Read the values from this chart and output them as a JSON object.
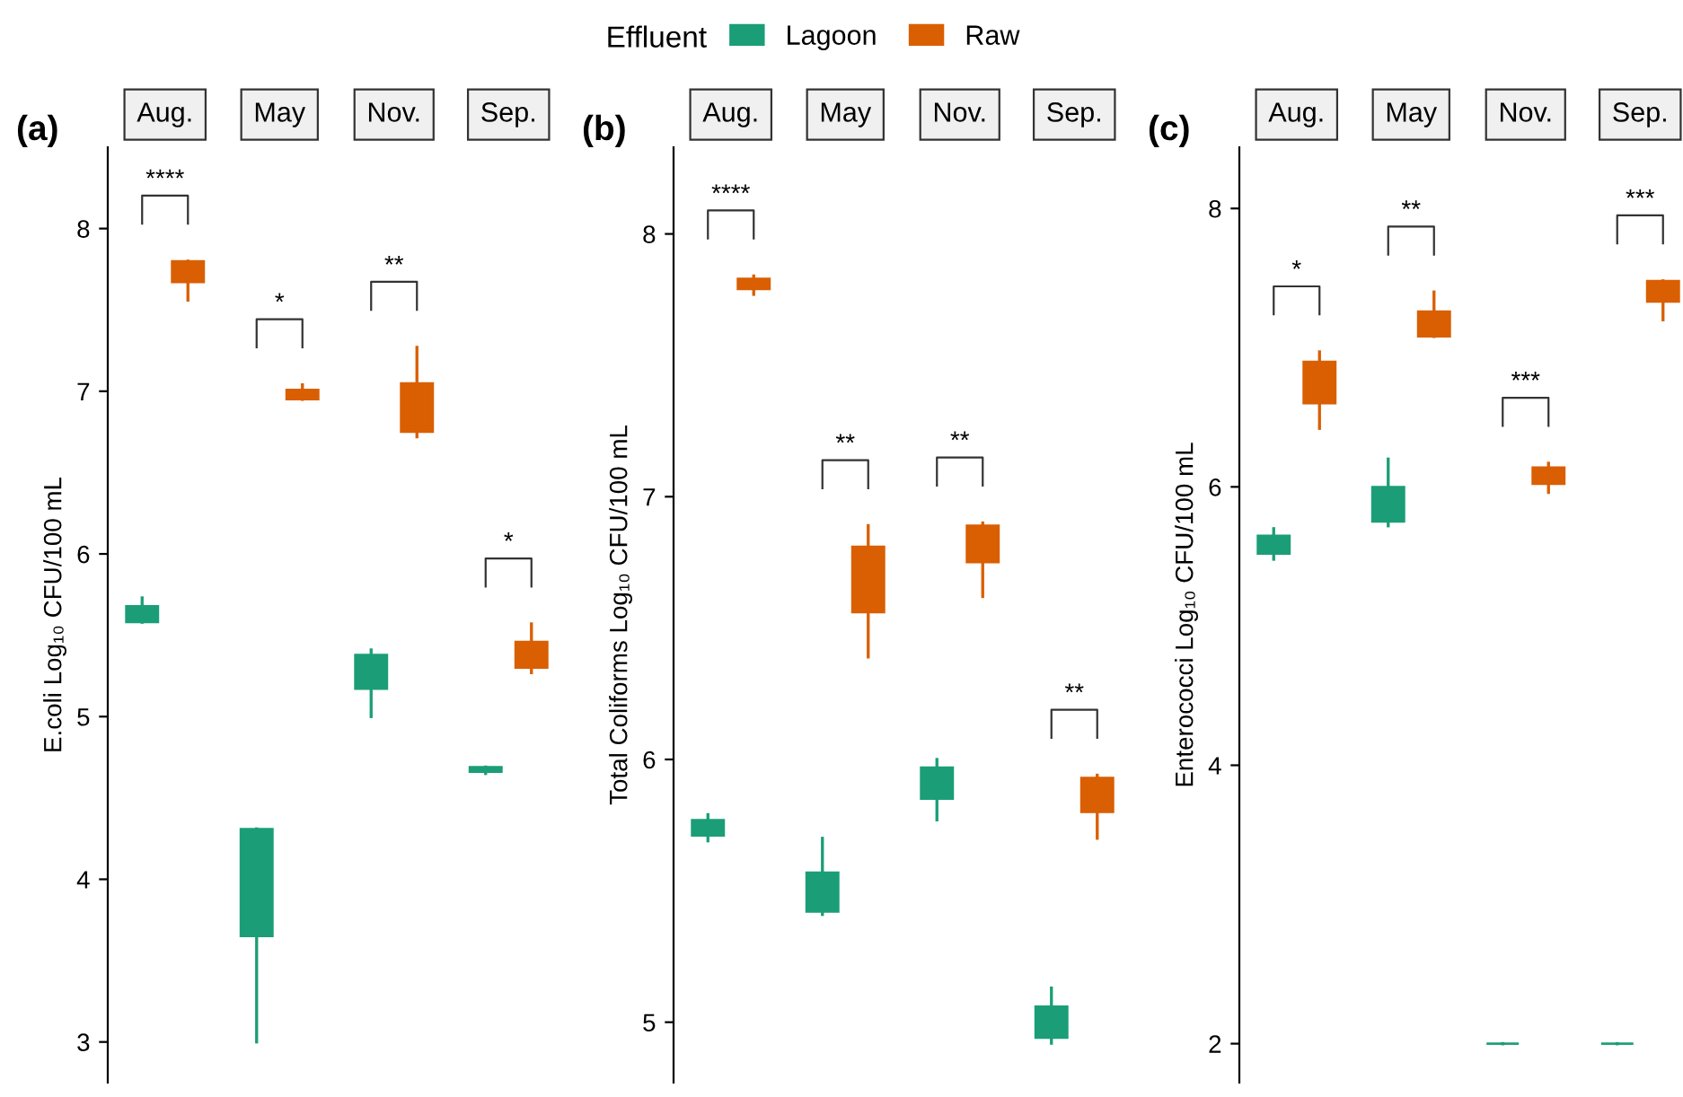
{
  "chart_data": [
    {
      "type": "box",
      "title": "(a)",
      "ylabel": "E.coli Log₁₀ CFU/100 mL",
      "legend_title": "Effluent",
      "legend": "top",
      "grid": false,
      "categories": [
        "Aug.",
        "May",
        "Nov.",
        "Sep."
      ],
      "ylim": [
        2.75,
        8.5
      ],
      "yticks": [
        3,
        4,
        5,
        6,
        7,
        8
      ],
      "series": [
        {
          "name": "Lagoon",
          "color": "#1b9e77",
          "boxes": [
            {
              "low": 5.58,
              "q1": 5.58,
              "median": 5.63,
              "q3": 5.68,
              "high": 5.73
            },
            {
              "low": 3.0,
              "q1": 3.65,
              "median": 4.28,
              "q3": 4.31,
              "high": 4.31
            },
            {
              "low": 5.0,
              "q1": 5.17,
              "median": 5.36,
              "q3": 5.38,
              "high": 5.41
            },
            {
              "low": 4.65,
              "q1": 4.66,
              "median": 4.68,
              "q3": 4.69,
              "high": 4.69
            }
          ]
        },
        {
          "name": "Raw",
          "color": "#d95f02",
          "boxes": [
            {
              "low": 7.56,
              "q1": 7.67,
              "median": 7.75,
              "q3": 7.8,
              "high": 7.8
            },
            {
              "low": 6.95,
              "q1": 6.95,
              "median": 6.98,
              "q3": 7.01,
              "high": 7.04
            },
            {
              "low": 6.72,
              "q1": 6.75,
              "median": 6.78,
              "q3": 7.05,
              "high": 7.27
            },
            {
              "low": 5.27,
              "q1": 5.3,
              "median": 5.36,
              "q3": 5.46,
              "high": 5.57
            }
          ]
        }
      ],
      "annotations": [
        "****",
        "*",
        "**",
        "*"
      ]
    },
    {
      "type": "box",
      "title": "(b)",
      "ylabel": "Total Coliforms Log₁₀ CFU/100 mL",
      "grid": false,
      "categories": [
        "Aug.",
        "May",
        "Nov.",
        "Sep."
      ],
      "ylim": [
        4.77,
        8.33
      ],
      "yticks": [
        5,
        6,
        7,
        8
      ],
      "series": [
        {
          "color": "#1b9e77",
          "boxes": [
            {
              "low": 5.69,
              "q1": 5.71,
              "median": 5.74,
              "q3": 5.77,
              "high": 5.79
            },
            {
              "low": 5.41,
              "q1": 5.42,
              "median": 5.44,
              "q3": 5.57,
              "high": 5.7
            },
            {
              "low": 5.77,
              "q1": 5.85,
              "median": 5.92,
              "q3": 5.97,
              "high": 6.0
            },
            {
              "low": 4.92,
              "q1": 4.94,
              "median": 4.97,
              "q3": 5.06,
              "high": 5.13
            }
          ]
        },
        {
          "color": "#d95f02",
          "boxes": [
            {
              "low": 7.77,
              "q1": 7.79,
              "median": 7.82,
              "q3": 7.83,
              "high": 7.84
            },
            {
              "low": 6.39,
              "q1": 6.56,
              "median": 6.6,
              "q3": 6.81,
              "high": 6.89
            },
            {
              "low": 6.62,
              "q1": 6.75,
              "median": 6.85,
              "q3": 6.89,
              "high": 6.9
            },
            {
              "low": 5.7,
              "q1": 5.8,
              "median": 5.85,
              "q3": 5.93,
              "high": 5.94
            }
          ]
        }
      ],
      "annotations": [
        "****",
        "**",
        "**",
        "**"
      ]
    },
    {
      "type": "box",
      "title": "(c)",
      "ylabel": "Enterococci Log₁₀ CFU/100 mL",
      "grid": false,
      "categories": [
        "Aug.",
        "May",
        "Nov.",
        "Sep."
      ],
      "ylim": [
        1.72,
        8.44
      ],
      "yticks": [
        2,
        4,
        6,
        8
      ],
      "series": [
        {
          "color": "#1b9e77",
          "boxes": [
            {
              "low": 5.48,
              "q1": 5.52,
              "median": 5.58,
              "q3": 5.65,
              "high": 5.7
            },
            {
              "low": 5.72,
              "q1": 5.75,
              "median": 5.78,
              "q3": 6.0,
              "high": 6.2
            },
            {
              "low": 2.0,
              "q1": 2.0,
              "median": 2.0,
              "q3": 2.0,
              "high": 2.0
            },
            {
              "low": 2.0,
              "q1": 2.0,
              "median": 2.0,
              "q3": 2.0,
              "high": 2.0
            }
          ]
        },
        {
          "color": "#d95f02",
          "boxes": [
            {
              "low": 6.42,
              "q1": 6.6,
              "median": 6.85,
              "q3": 6.9,
              "high": 6.97
            },
            {
              "low": 7.08,
              "q1": 7.08,
              "median": 7.15,
              "q3": 7.26,
              "high": 7.4
            },
            {
              "low": 5.96,
              "q1": 6.02,
              "median": 6.1,
              "q3": 6.14,
              "high": 6.17
            },
            {
              "low": 7.2,
              "q1": 7.33,
              "median": 7.4,
              "q3": 7.48,
              "high": 7.48
            }
          ]
        }
      ],
      "annotations": [
        "*",
        "**",
        "***",
        "***"
      ]
    }
  ]
}
